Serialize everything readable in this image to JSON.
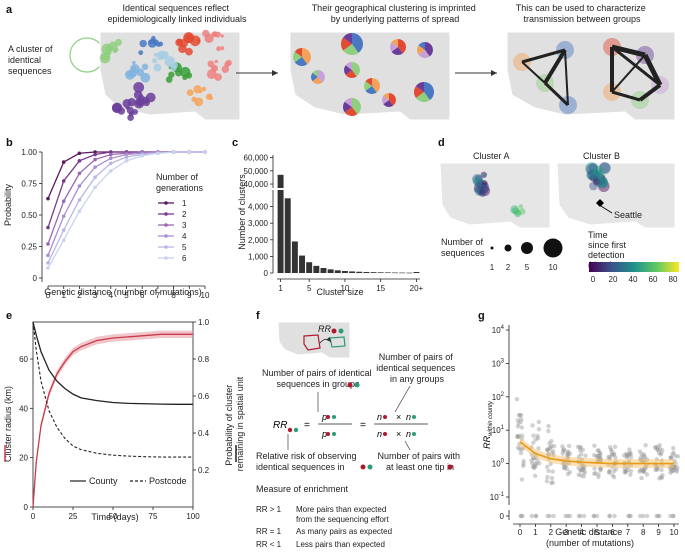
{
  "panels": {
    "a": {
      "label": "a",
      "captions": [
        "Identical sequences reflect\nepidemiologically linked individuals",
        "Their geographical clustering is imprinted\nby underlying patterns of spread",
        "This can be used to characterize\ntransmission between groups"
      ],
      "cluster_note": "A cluster of\nidentical\nsequences"
    },
    "b": {
      "label": "b",
      "legend_title": "Number of\ngenerations",
      "legend_items": [
        "1",
        "2",
        "3",
        "4",
        "5",
        "6"
      ],
      "colors": [
        "#5b1a5e",
        "#7a3a8c",
        "#9a67b3",
        "#a98ed0",
        "#b9b6e3",
        "#c9d3ef"
      ]
    },
    "c": {
      "label": "c"
    },
    "d": {
      "label": "d",
      "cluster_a": "Cluster A",
      "cluster_b": "Cluster B",
      "seattle": "Seattle",
      "size_legend_title": "Number of\nsequences",
      "size_legend_values": [
        "1",
        "2",
        "5",
        "10"
      ],
      "color_legend_title": "Time\nsince first\ndetection\n(days)",
      "color_legend_ticks": [
        "0",
        "20",
        "40",
        "60",
        "80"
      ]
    },
    "e": {
      "label": "e",
      "legend_county": "County",
      "legend_postcode": "Postcode"
    },
    "f": {
      "label": "f",
      "rr_label": "RR",
      "text_groups": "Number of pairs of identical\nsequences in groups",
      "text_any": "Number of pairs of\nidentical sequences\nin any groups",
      "text_rr": "Relative risk of observing\nidentical sequences in",
      "text_tip": "Number of pairs with\nat least one tip in",
      "measure_title": "Measure of enrichment",
      "rr_rows": [
        {
          "cond": "RR > 1",
          "desc": "More pairs than expected\nfrom the sequencing effort"
        },
        {
          "cond": "RR = 1",
          "desc": "As many pairs as expected"
        },
        {
          "cond": "RR < 1",
          "desc": "Less pairs than expected"
        }
      ]
    },
    "g": {
      "label": "g"
    }
  },
  "chart_data": [
    {
      "id": "b",
      "type": "line",
      "xlabel": "Genetic distance (number of mutations)",
      "ylabel": "Probability",
      "x": [
        0,
        1,
        2,
        3,
        4,
        5,
        6,
        7,
        8,
        9,
        10
      ],
      "xticks": [
        "0",
        "1",
        "2",
        "3",
        "4",
        "5",
        "6",
        "7",
        "8",
        "9",
        "10"
      ],
      "yticks": [
        "0",
        "0.25",
        "0.50",
        "0.75",
        "1.00"
      ],
      "ylim": [
        0,
        1
      ],
      "series": [
        {
          "name": "1",
          "values": [
            0.63,
            0.92,
            0.99,
            1.0,
            1.0,
            1.0,
            1.0,
            1.0,
            1.0,
            1.0,
            1.0
          ]
        },
        {
          "name": "2",
          "values": [
            0.4,
            0.77,
            0.93,
            0.98,
            1.0,
            1.0,
            1.0,
            1.0,
            1.0,
            1.0,
            1.0
          ]
        },
        {
          "name": "3",
          "values": [
            0.27,
            0.61,
            0.83,
            0.94,
            0.98,
            0.99,
            1.0,
            1.0,
            1.0,
            1.0,
            1.0
          ]
        },
        {
          "name": "4",
          "values": [
            0.18,
            0.49,
            0.73,
            0.88,
            0.95,
            0.98,
            0.99,
            1.0,
            1.0,
            1.0,
            1.0
          ]
        },
        {
          "name": "5",
          "values": [
            0.12,
            0.38,
            0.62,
            0.8,
            0.91,
            0.96,
            0.98,
            0.99,
            1.0,
            1.0,
            1.0
          ]
        },
        {
          "name": "6",
          "values": [
            0.08,
            0.3,
            0.53,
            0.72,
            0.85,
            0.93,
            0.97,
            0.99,
            1.0,
            1.0,
            1.0
          ]
        }
      ]
    },
    {
      "id": "c",
      "type": "bar",
      "xlabel": "Cluster size",
      "ylabel": "Number of clusters",
      "xticks": [
        "1",
        "5",
        "10",
        "15",
        "20+"
      ],
      "yticks_bottom": [
        "0",
        "1,000",
        "2,000",
        "3,000",
        "4,000"
      ],
      "yticks_top": [
        "40,000",
        "50,000",
        "60,000"
      ],
      "categories": [
        "1",
        "2",
        "3",
        "4",
        "5",
        "6",
        "7",
        "8",
        "9",
        "10",
        "11",
        "12",
        "13",
        "14",
        "15",
        "16",
        "17",
        "18",
        "19",
        "20+"
      ],
      "values": [
        47000,
        4500,
        1900,
        1050,
        650,
        430,
        300,
        220,
        160,
        120,
        95,
        75,
        60,
        50,
        42,
        35,
        28,
        24,
        20,
        60
      ]
    },
    {
      "id": "e",
      "type": "line",
      "xlabel": "Time (days)",
      "ylabel": "Cluster radius (km)",
      "ylabel_right": "Probability of cluster\nremaining in spatial unit",
      "xticks": [
        "0",
        "25",
        "50",
        "75",
        "100"
      ],
      "yticks": [
        "0",
        "20",
        "40",
        "60"
      ],
      "yticks_right": [
        "0.2",
        "0.4",
        "0.6",
        "0.8",
        "1.0"
      ],
      "ylim": [
        0,
        75
      ],
      "ylim_right": [
        0,
        1
      ],
      "x": [
        0,
        2,
        5,
        10,
        15,
        20,
        25,
        30,
        40,
        50,
        60,
        70,
        80,
        90,
        100
      ],
      "series": [
        {
          "name": "Cluster radius",
          "values": [
            0,
            18,
            33,
            46,
            54,
            59,
            63,
            65,
            67.5,
            68.5,
            69,
            69.5,
            70,
            70,
            70
          ]
        },
        {
          "name": "County",
          "values": [
            1.0,
            0.93,
            0.84,
            0.74,
            0.68,
            0.64,
            0.61,
            0.59,
            0.575,
            0.565,
            0.56,
            0.558,
            0.556,
            0.555,
            0.555
          ]
        },
        {
          "name": "Postcode",
          "values": [
            1.0,
            0.85,
            0.68,
            0.52,
            0.43,
            0.37,
            0.33,
            0.31,
            0.29,
            0.28,
            0.275,
            0.272,
            0.27,
            0.27,
            0.27
          ]
        }
      ]
    },
    {
      "id": "g",
      "type": "scatter",
      "xlabel": "Genetic distance\n(number of mutations)",
      "ylabel": "RR within county",
      "xticks": [
        "0",
        "1",
        "2",
        "3",
        "4",
        "5",
        "6",
        "7",
        "8",
        "9",
        "10"
      ],
      "yticks": [
        "10^4",
        "10^3",
        "10^2",
        "10^1",
        "10^0",
        "10^-1",
        "0"
      ],
      "trend": [
        4.5,
        2.0,
        1.4,
        1.2,
        1.1,
        1.05,
        1.0,
        1.0,
        1.0,
        1.0,
        1.0
      ]
    }
  ]
}
